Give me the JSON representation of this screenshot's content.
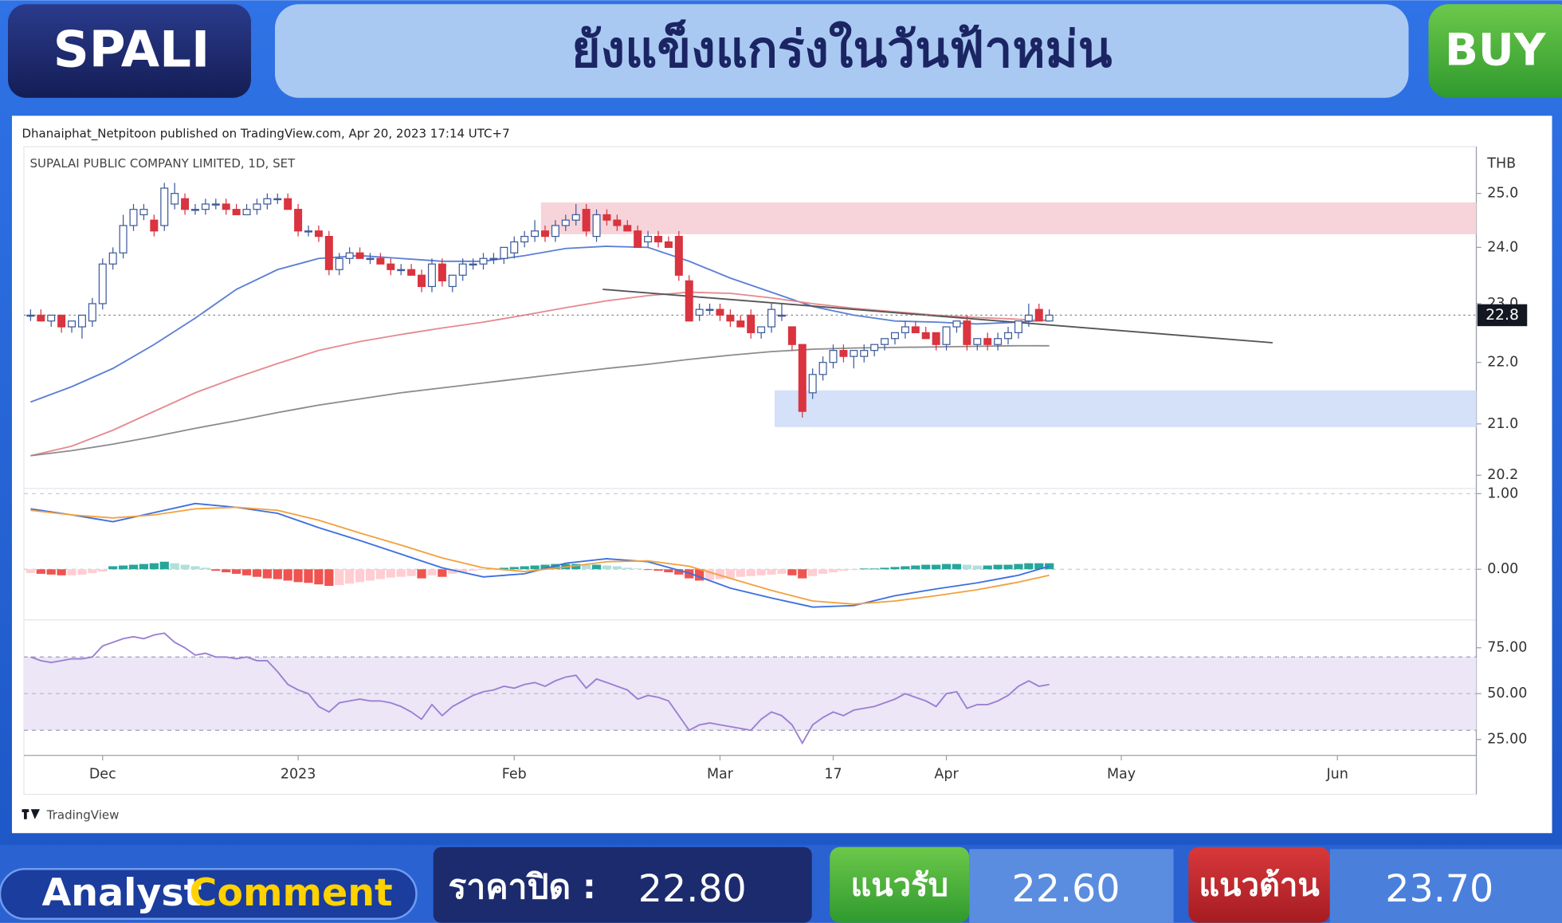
{
  "header": {
    "symbol": "SPALI",
    "title": "ยังแข็งแกร่งในวันฟ้าหม่น",
    "signal": "BUY"
  },
  "chart_data": {
    "type": "candlestick",
    "attribution": "Dhanaiphat_Netpitoon published on TradingView.com, Apr 20, 2023 17:14 UTC+7",
    "title": "SUPALAI PUBLIC COMPANY LIMITED, 1D, SET",
    "y_unit": "THB",
    "brand": "TradingView",
    "open": [
      22.8,
      22.8,
      22.7,
      22.8,
      22.6,
      22.6,
      22.7,
      23.0,
      23.7,
      23.9,
      24.4,
      24.6,
      24.5,
      24.4,
      24.8,
      24.9,
      24.7,
      24.7,
      24.8,
      24.8,
      24.7,
      24.6,
      24.7,
      24.8,
      24.9,
      24.9,
      24.7,
      24.3,
      24.3,
      24.2,
      23.6,
      23.8,
      23.9,
      23.8,
      23.8,
      23.7,
      23.6,
      23.6,
      23.5,
      23.3,
      23.7,
      23.3,
      23.5,
      23.7,
      23.7,
      23.8,
      23.8,
      23.9,
      24.1,
      24.2,
      24.3,
      24.2,
      24.4,
      24.5,
      24.7,
      24.2,
      24.6,
      24.5,
      24.4,
      24.3,
      24.1,
      24.2,
      24.1,
      24.2,
      23.4,
      22.8,
      22.9,
      22.9,
      22.8,
      22.7,
      22.8,
      22.5,
      22.6,
      22.8,
      22.6,
      22.3,
      21.5,
      21.8,
      22.0,
      22.2,
      22.1,
      22.1,
      22.2,
      22.3,
      22.4,
      22.5,
      22.6,
      22.5,
      22.5,
      22.3,
      22.6,
      22.7,
      22.3,
      22.4,
      22.3,
      22.4,
      22.5,
      22.7,
      22.9,
      22.7
    ],
    "high": [
      22.9,
      22.9,
      22.8,
      22.8,
      22.7,
      22.8,
      23.1,
      23.8,
      24.0,
      24.6,
      24.8,
      24.8,
      24.6,
      25.2,
      25.2,
      25.0,
      24.8,
      24.9,
      24.9,
      24.9,
      24.8,
      24.8,
      24.9,
      25.0,
      25.0,
      25.0,
      24.8,
      24.4,
      24.4,
      24.3,
      23.9,
      24.0,
      24.0,
      23.9,
      23.9,
      23.8,
      23.7,
      23.7,
      23.6,
      23.8,
      23.8,
      23.5,
      23.8,
      23.8,
      23.9,
      23.9,
      24.0,
      24.2,
      24.3,
      24.5,
      24.4,
      24.5,
      24.6,
      24.8,
      24.8,
      24.7,
      24.7,
      24.6,
      24.5,
      24.4,
      24.3,
      24.3,
      24.2,
      24.3,
      23.5,
      23.0,
      23.0,
      23.0,
      22.9,
      22.8,
      22.9,
      22.6,
      23.0,
      23.0,
      22.6,
      22.3,
      21.9,
      22.1,
      22.3,
      22.3,
      22.2,
      22.3,
      22.3,
      22.4,
      22.5,
      22.7,
      22.7,
      22.6,
      22.5,
      22.6,
      22.7,
      22.8,
      22.4,
      22.5,
      22.5,
      22.6,
      22.7,
      23.0,
      23.0,
      22.9
    ],
    "low": [
      22.7,
      22.7,
      22.6,
      22.5,
      22.5,
      22.4,
      22.6,
      22.9,
      23.6,
      23.8,
      24.3,
      24.5,
      24.2,
      24.3,
      24.7,
      24.6,
      24.6,
      24.6,
      24.7,
      24.6,
      24.6,
      24.6,
      24.6,
      24.7,
      24.8,
      24.7,
      24.2,
      24.2,
      24.1,
      23.5,
      23.5,
      23.7,
      23.8,
      23.7,
      23.7,
      23.5,
      23.5,
      23.5,
      23.2,
      23.2,
      23.3,
      23.2,
      23.4,
      23.6,
      23.6,
      23.7,
      23.7,
      23.8,
      24.0,
      24.1,
      24.1,
      24.1,
      24.3,
      24.4,
      24.2,
      24.1,
      24.4,
      24.3,
      24.3,
      24.0,
      24.0,
      24.0,
      24.0,
      23.4,
      22.7,
      22.7,
      22.8,
      22.7,
      22.6,
      22.6,
      22.4,
      22.4,
      22.5,
      22.7,
      22.2,
      21.1,
      21.4,
      21.7,
      21.9,
      22.0,
      21.9,
      22.0,
      22.1,
      22.2,
      22.3,
      22.4,
      22.5,
      22.4,
      22.2,
      22.2,
      22.5,
      22.2,
      22.2,
      22.2,
      22.2,
      22.3,
      22.4,
      22.6,
      22.7,
      22.7
    ],
    "close": [
      22.8,
      22.7,
      22.8,
      22.6,
      22.7,
      22.8,
      23.0,
      23.7,
      23.9,
      24.4,
      24.7,
      24.7,
      24.3,
      25.1,
      25.0,
      24.7,
      24.7,
      24.8,
      24.8,
      24.7,
      24.6,
      24.7,
      24.8,
      24.9,
      24.9,
      24.7,
      24.3,
      24.3,
      24.2,
      23.6,
      23.8,
      23.9,
      23.8,
      23.8,
      23.7,
      23.6,
      23.6,
      23.5,
      23.3,
      23.7,
      23.4,
      23.5,
      23.7,
      23.7,
      23.8,
      23.8,
      24.0,
      24.1,
      24.2,
      24.3,
      24.2,
      24.4,
      24.5,
      24.6,
      24.3,
      24.6,
      24.5,
      24.4,
      24.3,
      24.0,
      24.2,
      24.1,
      24.0,
      23.5,
      22.7,
      22.9,
      22.9,
      22.8,
      22.7,
      22.6,
      22.5,
      22.6,
      22.9,
      22.8,
      22.3,
      21.2,
      21.8,
      22.0,
      22.2,
      22.1,
      22.2,
      22.2,
      22.3,
      22.4,
      22.5,
      22.6,
      22.5,
      22.4,
      22.3,
      22.6,
      22.7,
      22.3,
      22.4,
      22.3,
      22.4,
      22.5,
      22.7,
      22.8,
      22.7,
      22.8
    ],
    "up_color": "#ffffff",
    "up_border": "#3f5c9c",
    "down_color": "#d9343f",
    "xlim": [
      -0.65,
      140.5
    ],
    "xticks": [
      {
        "value": 7,
        "label": "Dec"
      },
      {
        "value": 26,
        "label": "2023"
      },
      {
        "value": 47,
        "label": "Feb"
      },
      {
        "value": 67,
        "label": "Mar"
      },
      {
        "value": 78,
        "label": "17"
      },
      {
        "value": 89,
        "label": "Apr"
      },
      {
        "value": 106,
        "label": "May"
      },
      {
        "value": 127,
        "label": "Jun"
      }
    ],
    "ylim": [
      20.0,
      25.9
    ],
    "log_scale": true,
    "yticks": [
      20.2,
      {
        "value": 21,
        "label": "21.0"
      },
      {
        "value": 22,
        "label": "22.0"
      },
      {
        "value": 23,
        "label": "23.0"
      },
      {
        "value": 24,
        "label": "24.0"
      },
      {
        "value": 25,
        "label": "25.0"
      }
    ],
    "last_price": 22.8,
    "zones": [
      {
        "x0": 49.6,
        "low": 24.24,
        "high": 24.83,
        "color": "#f7d4d9"
      },
      {
        "x0": 72.3,
        "low": 20.95,
        "high": 21.54,
        "color": "#d4e1f8"
      }
    ],
    "trendline": {
      "x": [
        55.6,
        120.7
      ],
      "values": [
        23.25,
        22.33
      ],
      "color": "#555555"
    },
    "moving_averages": {
      "x": [
        0,
        4,
        8,
        12,
        16,
        20,
        24,
        28,
        32,
        36,
        40,
        44,
        48,
        52,
        56,
        60,
        64,
        68,
        72,
        76,
        80,
        84,
        88,
        92,
        96,
        99
      ],
      "series": [
        {
          "color": "#5b7fd4",
          "values": [
            21.35,
            21.6,
            21.9,
            22.3,
            22.75,
            23.25,
            23.6,
            23.8,
            23.85,
            23.8,
            23.75,
            23.75,
            23.85,
            23.98,
            24.02,
            24.0,
            23.75,
            23.45,
            23.2,
            22.95,
            22.8,
            22.7,
            22.68,
            22.65,
            22.68,
            22.72
          ]
        },
        {
          "color": "#e58a8f",
          "values": [
            20.5,
            20.65,
            20.9,
            21.2,
            21.5,
            21.75,
            21.98,
            22.2,
            22.35,
            22.47,
            22.58,
            22.68,
            22.8,
            22.93,
            23.05,
            23.14,
            23.2,
            23.18,
            23.1,
            23.0,
            22.92,
            22.86,
            22.8,
            22.76,
            22.73,
            22.7
          ]
        },
        {
          "color": "#8c8c8c",
          "values": [
            20.5,
            20.58,
            20.68,
            20.8,
            20.93,
            21.05,
            21.18,
            21.3,
            21.4,
            21.5,
            21.58,
            21.66,
            21.74,
            21.82,
            21.9,
            21.97,
            22.05,
            22.12,
            22.18,
            22.22,
            22.24,
            22.25,
            22.26,
            22.27,
            22.28,
            22.28
          ]
        }
      ]
    },
    "macd": {
      "ylim": [
        -0.67,
        1.07
      ],
      "yticks": [
        {
          "value": 1,
          "label": "1.00"
        },
        {
          "value": 0,
          "label": "0.00"
        }
      ],
      "histogram": [
        -0.05,
        -0.06,
        -0.07,
        -0.08,
        -0.08,
        -0.07,
        -0.05,
        -0.03,
        0.04,
        0.05,
        0.06,
        0.07,
        0.08,
        0.1,
        0.08,
        0.06,
        0.04,
        0.02,
        -0.02,
        -0.04,
        -0.06,
        -0.08,
        -0.1,
        -0.12,
        -0.13,
        -0.15,
        -0.17,
        -0.18,
        -0.2,
        -0.22,
        -0.21,
        -0.19,
        -0.17,
        -0.15,
        -0.13,
        -0.11,
        -0.1,
        -0.09,
        -0.12,
        -0.08,
        -0.1,
        -0.06,
        -0.04,
        -0.02,
        -0.01,
        0.01,
        0.02,
        0.03,
        0.04,
        0.05,
        0.06,
        0.07,
        0.07,
        0.07,
        0.06,
        0.06,
        0.05,
        0.04,
        0.02,
        0.01,
        -0.01,
        -0.02,
        -0.04,
        -0.07,
        -0.12,
        -0.15,
        -0.14,
        -0.13,
        -0.12,
        -0.1,
        -0.09,
        -0.08,
        -0.07,
        -0.06,
        -0.08,
        -0.12,
        -0.09,
        -0.06,
        -0.04,
        -0.02,
        -0.01,
        0.01,
        0.01,
        0.02,
        0.03,
        0.04,
        0.05,
        0.06,
        0.06,
        0.07,
        0.07,
        0.06,
        0.05,
        0.05,
        0.06,
        0.06,
        0.07,
        0.08,
        0.08,
        0.08
      ],
      "histogram_colors": [
        "#26a69a",
        "#b2dfdb",
        "#ef5350",
        "#ffcdd2"
      ],
      "x": [
        0,
        4,
        8,
        12,
        16,
        20,
        24,
        28,
        32,
        36,
        40,
        44,
        48,
        52,
        56,
        60,
        64,
        68,
        72,
        76,
        80,
        84,
        88,
        92,
        96,
        99
      ],
      "series": [
        {
          "color": "#3d6fe0",
          "values": [
            0.8,
            0.72,
            0.63,
            0.75,
            0.87,
            0.82,
            0.74,
            0.55,
            0.38,
            0.2,
            0.02,
            -0.1,
            -0.06,
            0.08,
            0.14,
            0.1,
            -0.05,
            -0.25,
            -0.38,
            -0.5,
            -0.48,
            -0.35,
            -0.26,
            -0.18,
            -0.08,
            0.04
          ]
        },
        {
          "color": "#f2a13d",
          "values": [
            0.78,
            0.72,
            0.68,
            0.72,
            0.8,
            0.82,
            0.78,
            0.65,
            0.48,
            0.32,
            0.15,
            0.02,
            -0.03,
            0.03,
            0.1,
            0.11,
            0.04,
            -0.12,
            -0.28,
            -0.42,
            -0.46,
            -0.42,
            -0.35,
            -0.27,
            -0.17,
            -0.08
          ]
        }
      ]
    },
    "rsi": {
      "ylim": [
        16.3,
        90.2
      ],
      "yticks": [
        {
          "value": 75,
          "label": "75.00"
        },
        {
          "value": 50,
          "label": "50.00"
        },
        {
          "value": 25,
          "label": "25.00"
        }
      ],
      "band": [
        30,
        70
      ],
      "band_color": "#ece6f7",
      "color": "#9b7fd1",
      "values": [
        70,
        68,
        67,
        68,
        69,
        69,
        70,
        76,
        78,
        80,
        81,
        80,
        82,
        83,
        78,
        75,
        71,
        72,
        70,
        70,
        69,
        70,
        68,
        68,
        62,
        55,
        52,
        50,
        43,
        40,
        45,
        46,
        47,
        46,
        46,
        45,
        43,
        40,
        36,
        44,
        38,
        43,
        46,
        49,
        51,
        52,
        54,
        53,
        55,
        56,
        54,
        57,
        59,
        60,
        53,
        58,
        56,
        54,
        52,
        47,
        49,
        48,
        46,
        38,
        30,
        33,
        34,
        33,
        32,
        31,
        30,
        36,
        40,
        38,
        33,
        23,
        33,
        37,
        40,
        38,
        41,
        42,
        43,
        45,
        47,
        50,
        48,
        46,
        43,
        50,
        51,
        42,
        44,
        44,
        46,
        49,
        54,
        57,
        54,
        55
      ]
    }
  },
  "footer": {
    "analyst": "Analyst",
    "comment": "Comment",
    "close": {
      "label": "ราคาปิด :",
      "value": "22.80"
    },
    "support": {
      "label": "แนวรับ",
      "value": "22.60"
    },
    "resistance": {
      "label": "แนวต้าน",
      "value": "23.70"
    }
  }
}
